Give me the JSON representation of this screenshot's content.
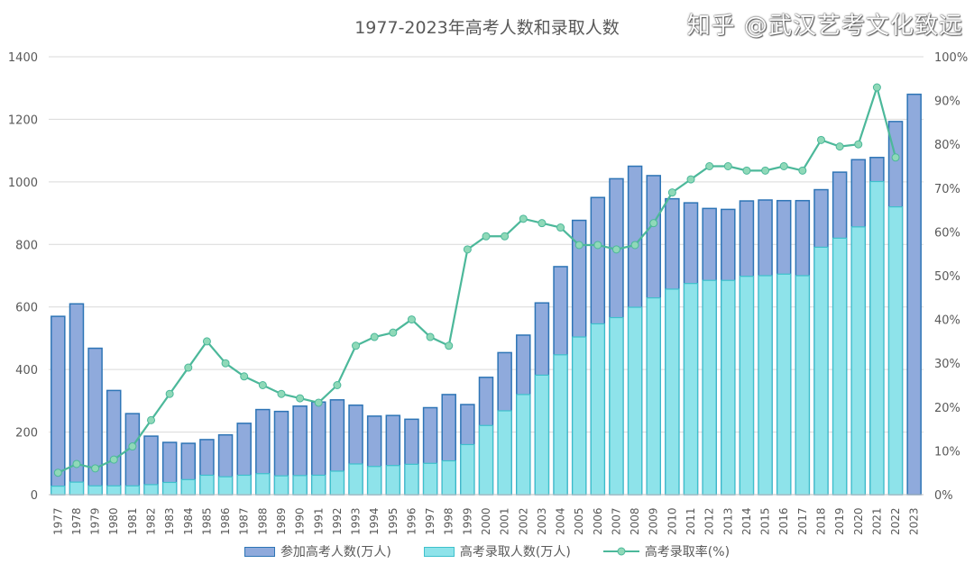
{
  "chart_data": {
    "type": "bar+line",
    "title": "1977-2023年高考人数和录取人数",
    "categories": [
      "1977",
      "1978",
      "1979",
      "1980",
      "1981",
      "1982",
      "1983",
      "1984",
      "1985",
      "1986",
      "1987",
      "1988",
      "1989",
      "1990",
      "1991",
      "1992",
      "1993",
      "1994",
      "1995",
      "1996",
      "1997",
      "1998",
      "1999",
      "2000",
      "2001",
      "2002",
      "2003",
      "2004",
      "2005",
      "2006",
      "2007",
      "2008",
      "2009",
      "2010",
      "2011",
      "2012",
      "2013",
      "2014",
      "2015",
      "2016",
      "2017",
      "2018",
      "2019",
      "2020",
      "2021",
      "2022",
      "2023"
    ],
    "series": [
      {
        "name": "参加高考人数(万人)",
        "type": "bar",
        "axis": "left",
        "color": "#8faadc",
        "stroke": "#2e75b6",
        "values": [
          570,
          610,
          468,
          333,
          259,
          187,
          167,
          164,
          176,
          191,
          228,
          272,
          266,
          283,
          296,
          303,
          286,
          251,
          253,
          241,
          278,
          320,
          288,
          375,
          454,
          510,
          613,
          729,
          877,
          950,
          1010,
          1050,
          1020,
          946,
          933,
          915,
          912,
          939,
          942,
          940,
          940,
          975,
          1031,
          1071,
          1078,
          1193,
          1280
        ]
      },
      {
        "name": "高考录取人数(万人)",
        "type": "bar",
        "axis": "left",
        "color": "#8ee3ea",
        "stroke": "#3ec1cc",
        "values": [
          27,
          40,
          28,
          28,
          28,
          32,
          39,
          48,
          62,
          57,
          62,
          67,
          60,
          61,
          62,
          75,
          98,
          90,
          93,
          97,
          100,
          108,
          160,
          221,
          268,
          320,
          382,
          447,
          504,
          546,
          566,
          599,
          629,
          657,
          675,
          685,
          685,
          698,
          700,
          705,
          700,
          791,
          820,
          856,
          1001,
          920,
          null
        ]
      },
      {
        "name": "高考录取率(%)",
        "type": "line",
        "axis": "right",
        "color": "#4cb89a",
        "values": [
          5,
          7,
          6,
          8,
          11,
          17,
          23,
          29,
          35,
          30,
          27,
          25,
          23,
          22,
          21,
          25,
          34,
          36,
          37,
          40,
          36,
          34,
          56,
          59,
          59,
          63,
          62,
          61,
          57,
          57,
          56,
          57,
          62,
          69,
          72,
          75,
          75,
          74,
          74,
          75,
          74,
          81,
          79.5,
          80,
          93,
          77,
          null
        ]
      }
    ],
    "y_left": {
      "min": 0,
      "max": 1400,
      "ticks": [
        "0",
        "200",
        "400",
        "600",
        "800",
        "1000",
        "1200",
        "1400"
      ]
    },
    "y_right": {
      "min": 0,
      "max": 100,
      "ticks": [
        "0%",
        "10%",
        "20%",
        "30%",
        "40%",
        "50%",
        "60%",
        "70%",
        "80%",
        "90%",
        "100%"
      ]
    },
    "grid": true,
    "legend_position": "bottom"
  },
  "watermark": "知乎 @武汉艺考文化致远"
}
